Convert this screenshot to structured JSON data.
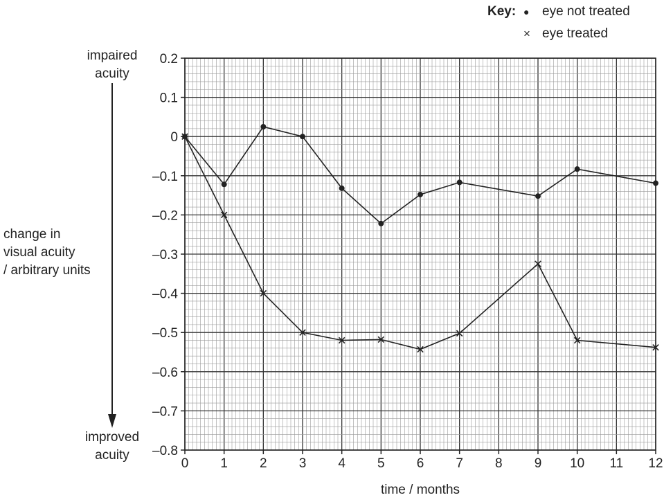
{
  "chart_data": {
    "type": "line",
    "xlabel": "time / months",
    "ylabel": [
      "change in",
      "visual acuity",
      "/ arbitrary units"
    ],
    "top_annotation": [
      "impaired",
      "acuity"
    ],
    "bottom_annotation": [
      "improved",
      "acuity"
    ],
    "xlim": [
      0,
      12
    ],
    "ylim": [
      -0.8,
      0.2
    ],
    "x_ticks": [
      "0",
      "1",
      "2",
      "3",
      "4",
      "5",
      "6",
      "7",
      "8",
      "9",
      "10",
      "11",
      "12"
    ],
    "y_ticks": [
      "0.2",
      "0.1",
      "0",
      "–0.1",
      "–0.2",
      "–0.3",
      "–0.4",
      "–0.5",
      "–0.6",
      "–0.7",
      "–0.8"
    ],
    "y_tick_values": [
      0.2,
      0.1,
      0,
      -0.1,
      -0.2,
      -0.3,
      -0.4,
      -0.5,
      -0.6,
      -0.7,
      -0.8
    ],
    "grid": true,
    "legend_position": "top-right",
    "legend_title": "Key:",
    "series": [
      {
        "name": "eye not treated",
        "marker": "dot",
        "marker_glyph": "●",
        "x": [
          0,
          1,
          2,
          3,
          4,
          5,
          6,
          7,
          9,
          10,
          12
        ],
        "values": [
          0,
          -0.122,
          0.025,
          0,
          -0.132,
          -0.222,
          -0.148,
          -0.117,
          -0.152,
          -0.083,
          -0.119
        ]
      },
      {
        "name": "eye treated",
        "marker": "cross",
        "marker_glyph": "×",
        "x": [
          0,
          1,
          2,
          3,
          4,
          5,
          6,
          7,
          9,
          10,
          12
        ],
        "values": [
          0,
          -0.2,
          -0.4,
          -0.5,
          -0.52,
          -0.518,
          -0.543,
          -0.502,
          -0.325,
          -0.52,
          -0.538
        ]
      }
    ]
  }
}
